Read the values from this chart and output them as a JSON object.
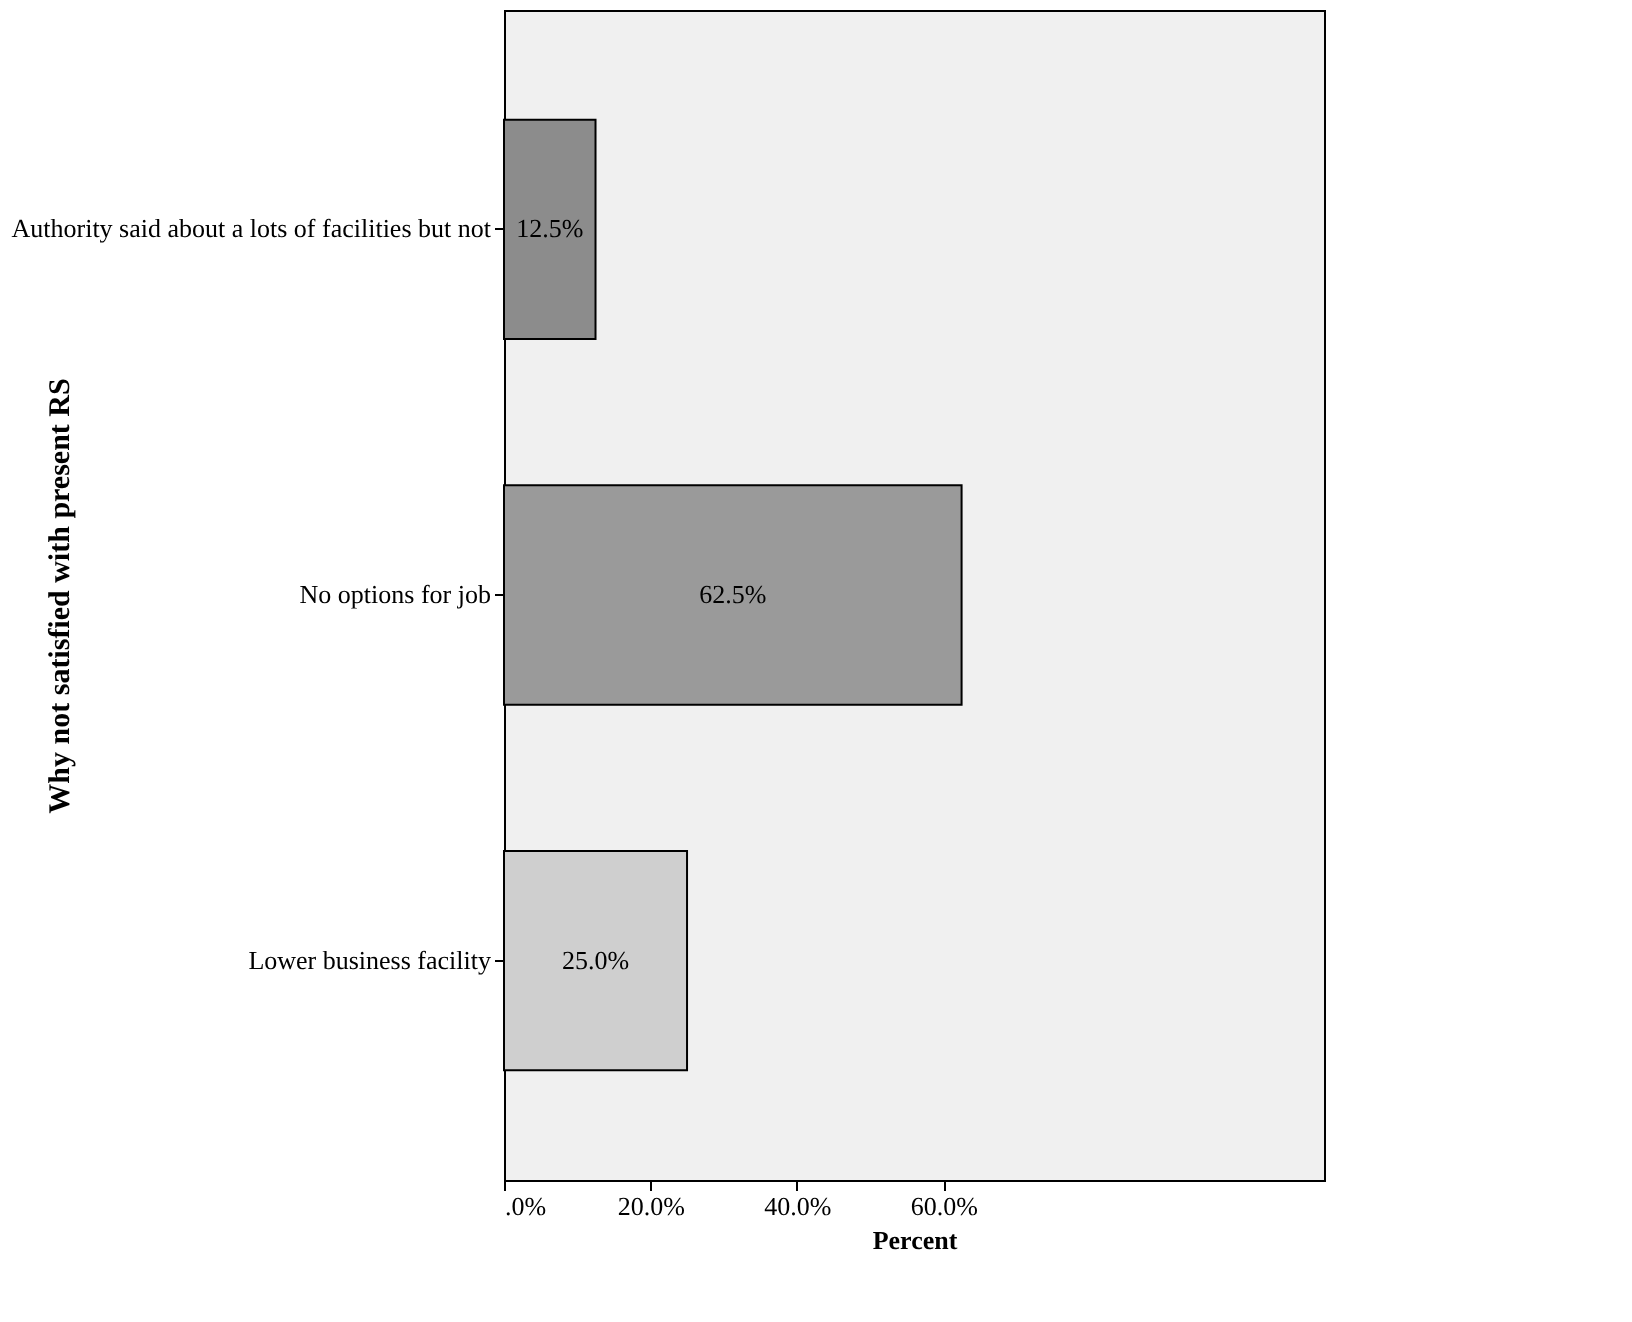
{
  "chart_data": {
    "type": "bar",
    "orientation": "horizontal",
    "categories": [
      "Authority said about a lots of facilities but not",
      "No options for job",
      "Lower business facility"
    ],
    "values": [
      12.5,
      62.5,
      25.0
    ],
    "value_labels": [
      "12.5%",
      "62.5%",
      "25.0%"
    ],
    "colors": [
      "#8c8c8c",
      "#9a9a9a",
      "#cfcfcf"
    ],
    "xlabel": "Percent",
    "ylabel": "Why not satisfied with present RS",
    "xlim": [
      0,
      112
    ],
    "xticks": [
      {
        "value": 0,
        "label": ".0%"
      },
      {
        "value": 20,
        "label": "20.0%"
      },
      {
        "value": 40,
        "label": "40.0%"
      },
      {
        "value": 60,
        "label": "60.0%"
      }
    ],
    "grid": false
  }
}
